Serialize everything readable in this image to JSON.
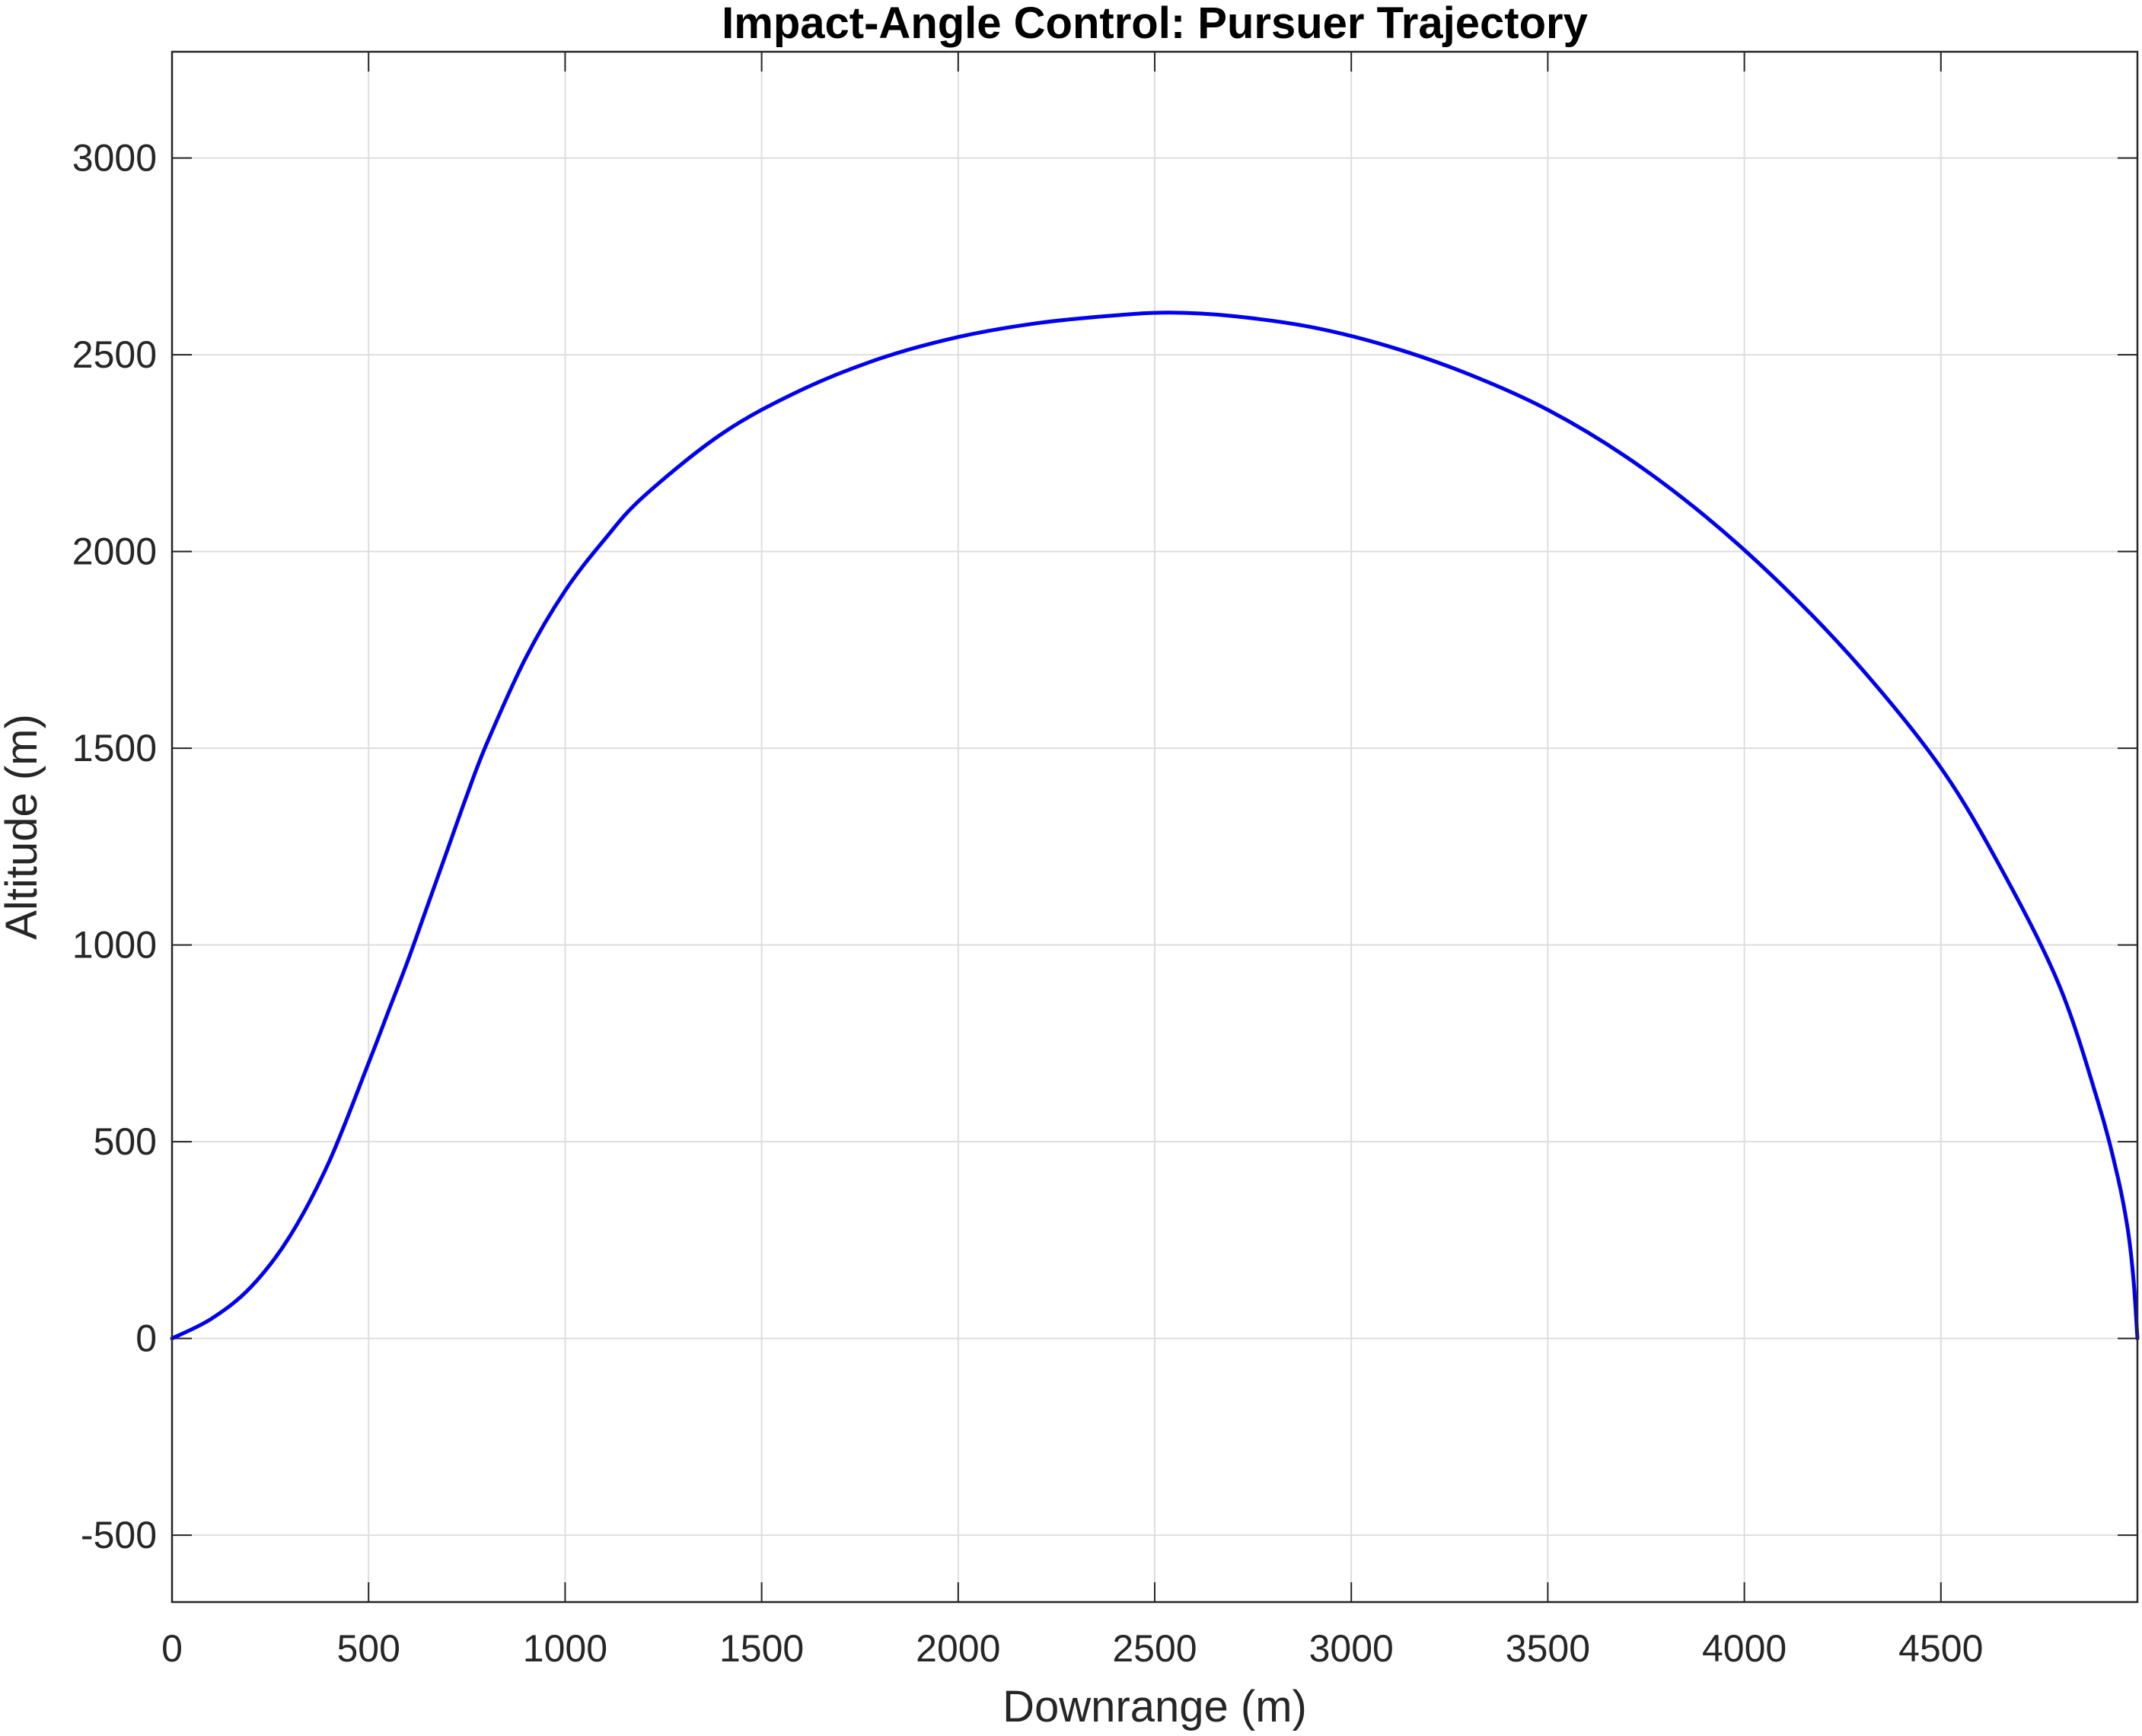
{
  "chart_data": {
    "type": "line",
    "title": "Impact-Angle Control: Pursuer Trajectory",
    "xlabel": "Downrange (m)",
    "ylabel": "Altitude (m)",
    "xlim": [
      0,
      5000
    ],
    "ylim": [
      -670,
      3270
    ],
    "xticks": [
      0,
      500,
      1000,
      1500,
      2000,
      2500,
      3000,
      3500,
      4000,
      4500
    ],
    "yticks": [
      -500,
      0,
      500,
      1000,
      1500,
      2000,
      2500,
      3000
    ],
    "grid": true,
    "series": [
      {
        "color": "#0000ee",
        "x": [
          0,
          100,
          200,
          300,
          400,
          500,
          550,
          600,
          650,
          700,
          750,
          800,
          900,
          1000,
          1100,
          1200,
          1400,
          1600,
          1800,
          2000,
          2200,
          2400,
          2540,
          2700,
          2900,
          3100,
          3300,
          3500,
          3700,
          3900,
          4100,
          4300,
          4500,
          4650,
          4800,
          4900,
          4950,
          4975,
          4990,
          5000
        ],
        "y": [
          0,
          50,
          130,
          260,
          450,
          700,
          830,
          960,
          1100,
          1240,
          1380,
          1510,
          1730,
          1900,
          2030,
          2140,
          2300,
          2410,
          2490,
          2545,
          2580,
          2600,
          2607,
          2598,
          2570,
          2520,
          2450,
          2360,
          2240,
          2090,
          1910,
          1700,
          1450,
          1200,
          900,
          600,
          410,
          280,
          150,
          0
        ]
      }
    ]
  }
}
